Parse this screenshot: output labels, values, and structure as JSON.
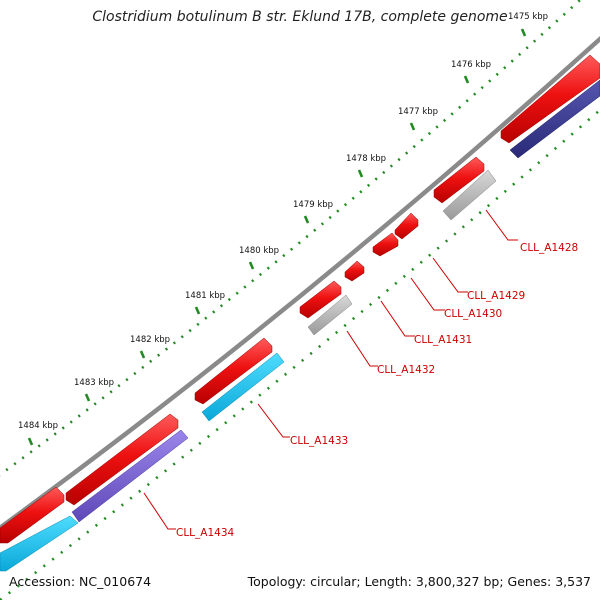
{
  "title": "Clostridium botulinum B str. Eklund 17B, complete genome",
  "footer": {
    "accession": "Accession: NC_010674",
    "summary": "Topology: circular; Length: 3,800,327 bp; Genes: 3,537"
  },
  "scale_labels": [
    "1475 kbp",
    "1476 kbp",
    "1477 kbp",
    "1478 kbp",
    "1479 kbp",
    "1480 kbp",
    "1481 kbp",
    "1482 kbp",
    "1483 kbp",
    "1484 kbp"
  ],
  "gene_labels": [
    "CLL_A1428",
    "CLL_A1429",
    "CLL_A1430",
    "CLL_A1431",
    "CLL_A1432",
    "CLL_A1433",
    "CLL_A1434"
  ],
  "colors": {
    "backbone": "#8a8a8a",
    "feature_red": "#ee1111",
    "cds_navy": "#3a3a8e",
    "cds_grey": "#b5b5b5",
    "cds_cyan": "#19c0e8",
    "cds_violet": "#7a64d0",
    "tick_green": "#228b22",
    "label_red": "#cc0000"
  }
}
